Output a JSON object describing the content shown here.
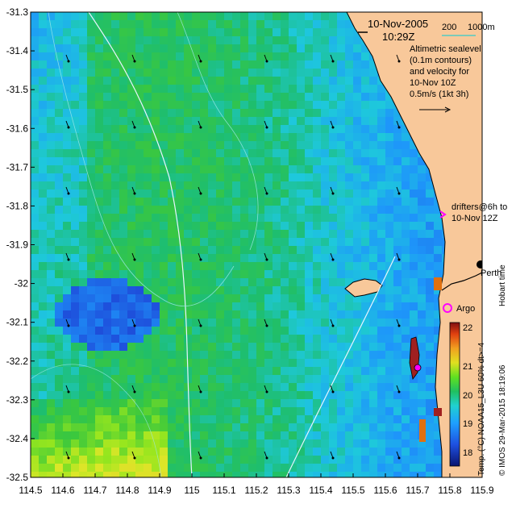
{
  "map": {
    "date": "10-Nov-2005",
    "time": "10:29Z",
    "scale_label_200": "200",
    "scale_label_1000": "1000m",
    "legend_lines": [
      "Altimetric sealevel",
      "(0.1m contours)",
      "and velocity for",
      "10-Nov 10Z",
      "0.5m/s (1kt 3h)"
    ],
    "drifters_line1": "drifters@6h to",
    "drifters_line2": "10-Nov 12Z",
    "place_perth": "Perth",
    "place_argo": "Argo",
    "side_credit": "Hobart time",
    "timestamp": "© IMOS 29-Mar-2015 18:19:06",
    "colorbar_label": "Temp. (°C) NOAA15_L3U 60% dt>=4",
    "colorbar_ticks": [
      "22",
      "21",
      "20",
      "19",
      "18"
    ],
    "colors": {
      "land": "#f8c89a",
      "drifter": "#ff00ff",
      "argo": "#ff00ff",
      "scale_bar": "#33cccc"
    }
  },
  "axes": {
    "x_ticks": [
      "114.5",
      "114.6",
      "114.7",
      "114.8",
      "114.9",
      "115",
      "115.1",
      "115.2",
      "115.3",
      "115.4",
      "115.5",
      "115.6",
      "115.7",
      "115.8",
      "115.9"
    ],
    "y_ticks": [
      "-31.3",
      "-31.4",
      "-31.5",
      "-31.6",
      "-31.7",
      "-31.8",
      "-31.9",
      "-32",
      "-32.1",
      "-32.2",
      "-32.3",
      "-32.4",
      "-32.5"
    ]
  }
}
